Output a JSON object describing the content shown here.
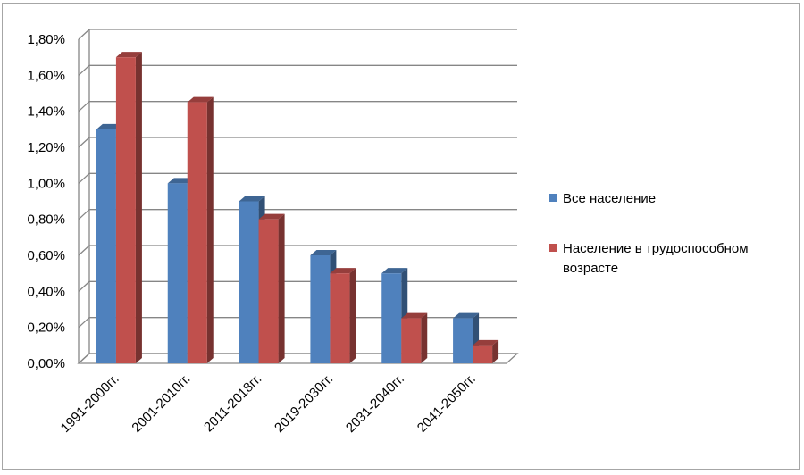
{
  "chart_data": {
    "type": "bar",
    "categories": [
      "1991-2000гг.",
      "2001-2010гг.",
      "2011-2018гг.",
      "2019-2030гг.",
      "2031-2040гг.",
      "2041-2050гг."
    ],
    "series": [
      {
        "name": "Все население",
        "values": [
          1.3,
          1.0,
          0.9,
          0.6,
          0.5,
          0.25
        ],
        "color": "#4f81bd"
      },
      {
        "name": "Население в трудоспособном возрасте",
        "values": [
          1.7,
          1.45,
          0.8,
          0.5,
          0.25,
          0.1
        ],
        "color": "#c0504d"
      }
    ],
    "yticks": [
      "0,00%",
      "0,20%",
      "0,40%",
      "0,60%",
      "0,80%",
      "1,00%",
      "1,20%",
      "1,40%",
      "1,60%",
      "1,80%"
    ],
    "ylim": [
      0,
      1.8
    ],
    "grid": true,
    "legend_position": "right",
    "style": "3d-clustered-column"
  }
}
